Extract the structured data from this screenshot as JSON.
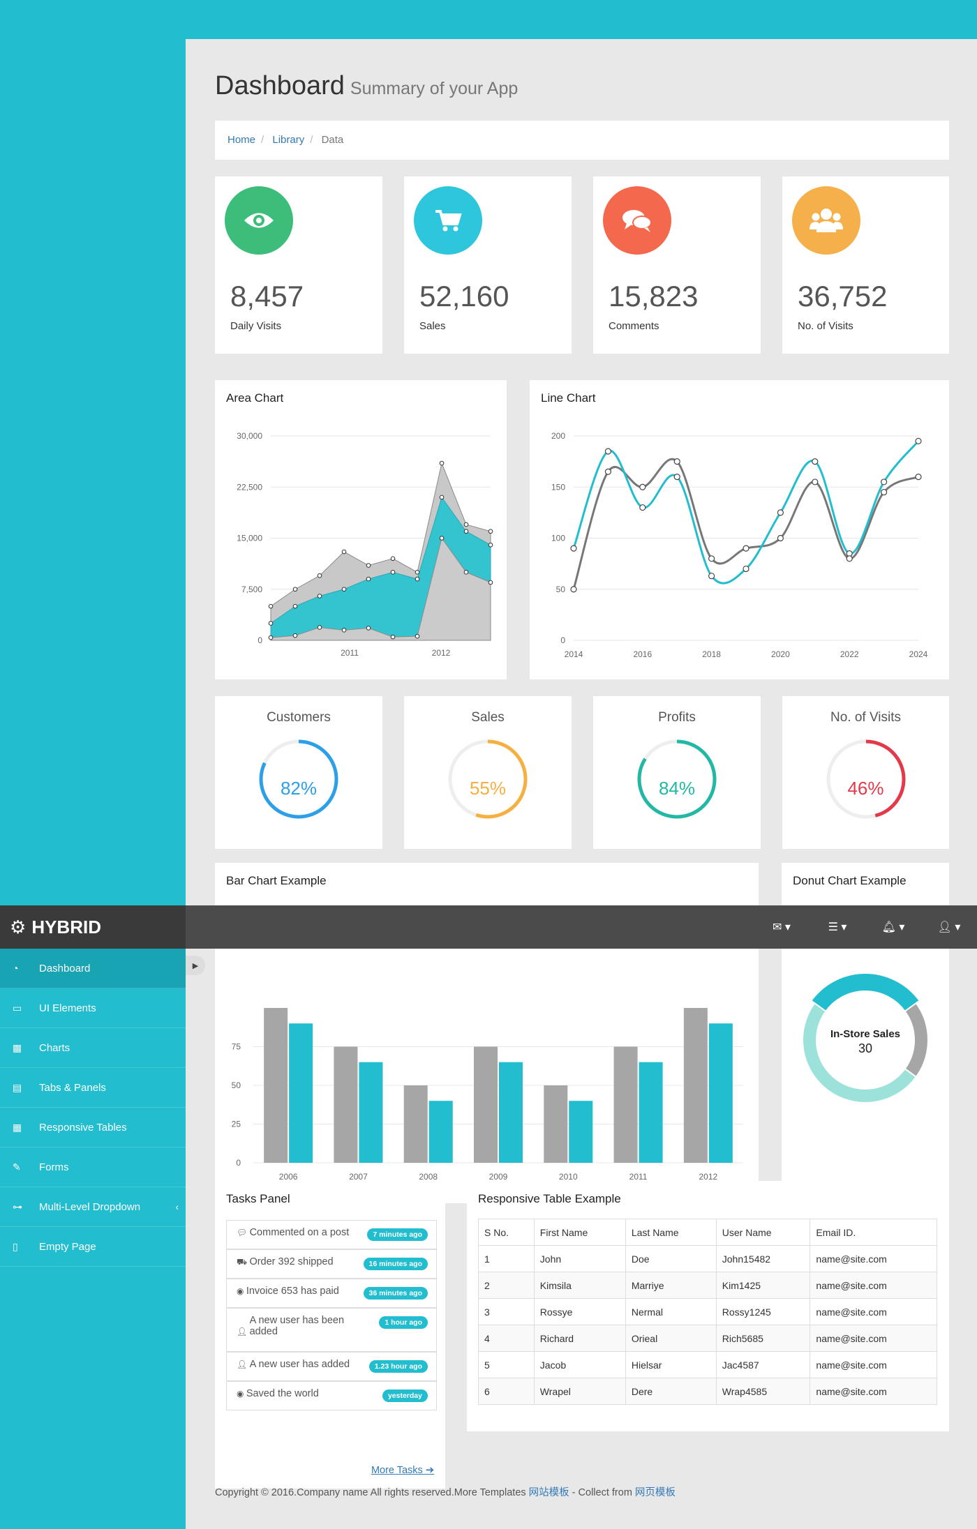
{
  "header": {
    "title": "Dashboard",
    "subtitle": "Summary of your App"
  },
  "breadcrumb": [
    "Home",
    "Library",
    "Data"
  ],
  "stats": [
    {
      "value": "8,457",
      "label": "Daily Visits",
      "color": "#3cbd7a",
      "icon": "eye-icon"
    },
    {
      "value": "52,160",
      "label": "Sales",
      "color": "#2dc6dc",
      "icon": "cart-icon"
    },
    {
      "value": "15,823",
      "label": "Comments",
      "color": "#f4694e",
      "icon": "comments-icon"
    },
    {
      "value": "36,752",
      "label": "No. of Visits",
      "color": "#f5b04b",
      "icon": "users-icon"
    }
  ],
  "pies": [
    {
      "title": "Customers",
      "value": "82%",
      "fraction": 0.82,
      "color": "#2c9fe8"
    },
    {
      "title": "Sales",
      "value": "55%",
      "fraction": 0.55,
      "color": "#f5b042"
    },
    {
      "title": "Profits",
      "value": "84%",
      "fraction": 0.84,
      "color": "#23b8a6"
    },
    {
      "title": "No. of Visits",
      "value": "46%",
      "fraction": 0.46,
      "color": "#e23a4a"
    }
  ],
  "navbar": {
    "brand": "HYBRID",
    "icons": [
      "envelope-icon",
      "tasks-icon",
      "bell-icon",
      "user-icon"
    ]
  },
  "sidebar": {
    "items": [
      {
        "label": "Dashboard",
        "icon": "dashboard-icon",
        "active": true
      },
      {
        "label": "UI Elements",
        "icon": "desktop-icon"
      },
      {
        "label": "Charts",
        "icon": "chart-icon"
      },
      {
        "label": "Tabs & Panels",
        "icon": "tabs-icon"
      },
      {
        "label": "Responsive Tables",
        "icon": "table-icon"
      },
      {
        "label": "Forms",
        "icon": "edit-icon"
      },
      {
        "label": "Multi-Level Dropdown",
        "icon": "sitemap-icon"
      },
      {
        "label": "Empty Page",
        "icon": "file-icon"
      }
    ]
  },
  "tasks": {
    "title": "Tasks Panel",
    "items": [
      {
        "text": "Commented on a post",
        "badge": "7 minutes ago",
        "icon": "comment-icon"
      },
      {
        "text": "Order 392 shipped",
        "badge": "16 minutes ago",
        "icon": "truck-icon"
      },
      {
        "text": "Invoice 653 has paid",
        "badge": "36 minutes ago",
        "icon": "globe-icon"
      },
      {
        "text": "A new user has been added",
        "badge": "1 hour ago",
        "icon": "user-icon"
      },
      {
        "text": "A new user has added",
        "badge": "1.23 hour ago",
        "icon": "user-icon"
      },
      {
        "text": "Saved the world",
        "badge": "yesterday",
        "icon": "globe-icon"
      }
    ],
    "more": "More Tasks"
  },
  "table": {
    "title": "Responsive Table Example",
    "columns": [
      "S No.",
      "First Name",
      "Last Name",
      "User Name",
      "Email ID."
    ],
    "rows": [
      [
        "1",
        "John",
        "Doe",
        "John15482",
        "name@site.com"
      ],
      [
        "2",
        "Kimsila",
        "Marriye",
        "Kim1425",
        "name@site.com"
      ],
      [
        "3",
        "Rossye",
        "Nermal",
        "Rossy1245",
        "name@site.com"
      ],
      [
        "4",
        "Richard",
        "Orieal",
        "Rich5685",
        "name@site.com"
      ],
      [
        "5",
        "Jacob",
        "Hielsar",
        "Jac4587",
        "name@site.com"
      ],
      [
        "6",
        "Wrapel",
        "Dere",
        "Wrap4585",
        "name@site.com"
      ]
    ]
  },
  "footer": {
    "text": "Copyright © 2016.Company name All rights reserved.More Templates ",
    "link1": "网站模板",
    "mid": " - Collect from ",
    "link2": "网页模板"
  },
  "chart_data": [
    {
      "type": "area",
      "title": "Area Chart",
      "ylim": [
        0,
        30000
      ],
      "yticks": [
        "30,000",
        "22,500",
        "15,000",
        "7,500",
        "0"
      ],
      "xticks": [
        "2011",
        "2012"
      ],
      "series": [
        {
          "values": [
            5000,
            7500,
            9500,
            13000,
            11000,
            12000,
            10000,
            26000,
            17000,
            16000
          ]
        },
        {
          "values": [
            2500,
            5000,
            6500,
            7500,
            9000,
            10000,
            9000,
            21000,
            16000,
            14000
          ]
        },
        {
          "values": [
            400,
            700,
            1900,
            1500,
            1800,
            500,
            600,
            15000,
            10000,
            8500
          ]
        }
      ]
    },
    {
      "type": "line",
      "title": "Line Chart",
      "xlim": [
        2014,
        2024
      ],
      "ylim": [
        0,
        200
      ],
      "yticks": [
        "200",
        "150",
        "100",
        "50",
        "0"
      ],
      "xticks": [
        "2014",
        "2016",
        "2018",
        "2020",
        "2022",
        "2024"
      ],
      "series": [
        {
          "color": "#22bdcf",
          "x": [
            2014,
            2015,
            2016,
            2017,
            2018,
            2019,
            2020,
            2021,
            2022,
            2023,
            2024
          ],
          "values": [
            90,
            185,
            130,
            160,
            63,
            70,
            125,
            175,
            85,
            155,
            195
          ]
        },
        {
          "color": "#777777",
          "x": [
            2014,
            2015,
            2016,
            2017,
            2018,
            2019,
            2020,
            2021,
            2022,
            2023,
            2024
          ],
          "values": [
            50,
            165,
            150,
            175,
            80,
            90,
            100,
            155,
            80,
            145,
            160
          ]
        }
      ]
    },
    {
      "type": "bar",
      "title": "Bar Chart Example",
      "categories": [
        "2006",
        "2007",
        "2008",
        "2009",
        "2010",
        "2011",
        "2012"
      ],
      "ylim": [
        0,
        100
      ],
      "yticks": [
        "75",
        "50",
        "25",
        "0"
      ],
      "series": [
        {
          "color": "#a6a6a6",
          "values": [
            100,
            75,
            50,
            75,
            50,
            75,
            100
          ]
        },
        {
          "color": "#22bdcf",
          "values": [
            90,
            65,
            40,
            65,
            40,
            65,
            90
          ]
        }
      ]
    },
    {
      "type": "pie",
      "title": "Donut Chart Example",
      "center_label": "In-Store Sales",
      "center_value": "30",
      "slices": [
        {
          "label": "In-Store Sales",
          "value": 30,
          "color": "#22bdcf"
        },
        {
          "value": 20,
          "color": "#a6a6a6"
        },
        {
          "value": 50,
          "color": "#9de2da"
        }
      ]
    }
  ]
}
